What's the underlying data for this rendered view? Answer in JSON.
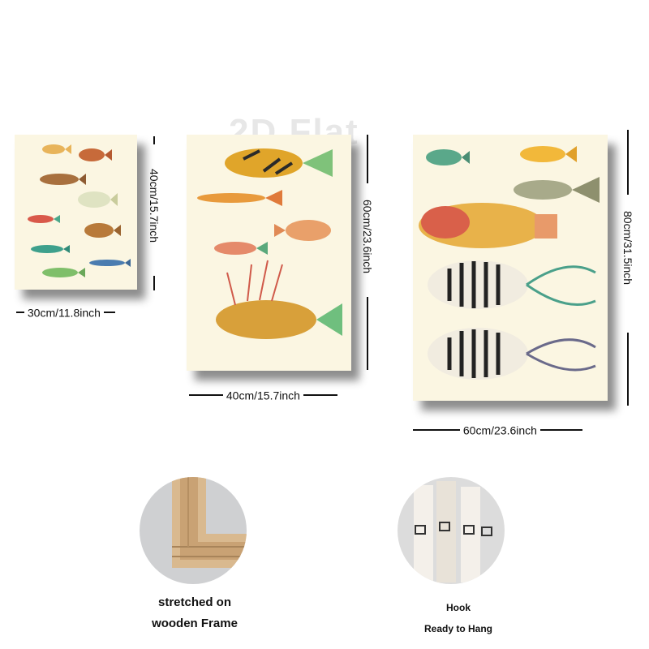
{
  "watermark": "2D Flat",
  "canvases": [
    {
      "name": "small",
      "width_label": "30cm/11.8inch",
      "height_label": "40cm/15.7inch"
    },
    {
      "name": "medium",
      "width_label": "40cm/15.7inch",
      "height_label": "60cm/23.6inch"
    },
    {
      "name": "large",
      "width_label": "60cm/23.6inch",
      "height_label": "80cm/31.5inch"
    }
  ],
  "details": [
    {
      "name": "frame",
      "caption_line1": "stretched on",
      "caption_line2": "wooden Frame"
    },
    {
      "name": "hook",
      "caption_line1": "Hook",
      "caption_line2": "Ready to Hang"
    }
  ],
  "colors": {
    "canvas_bg": "#fbf6e2",
    "wood": "#d9b98f",
    "text": "#111111"
  }
}
